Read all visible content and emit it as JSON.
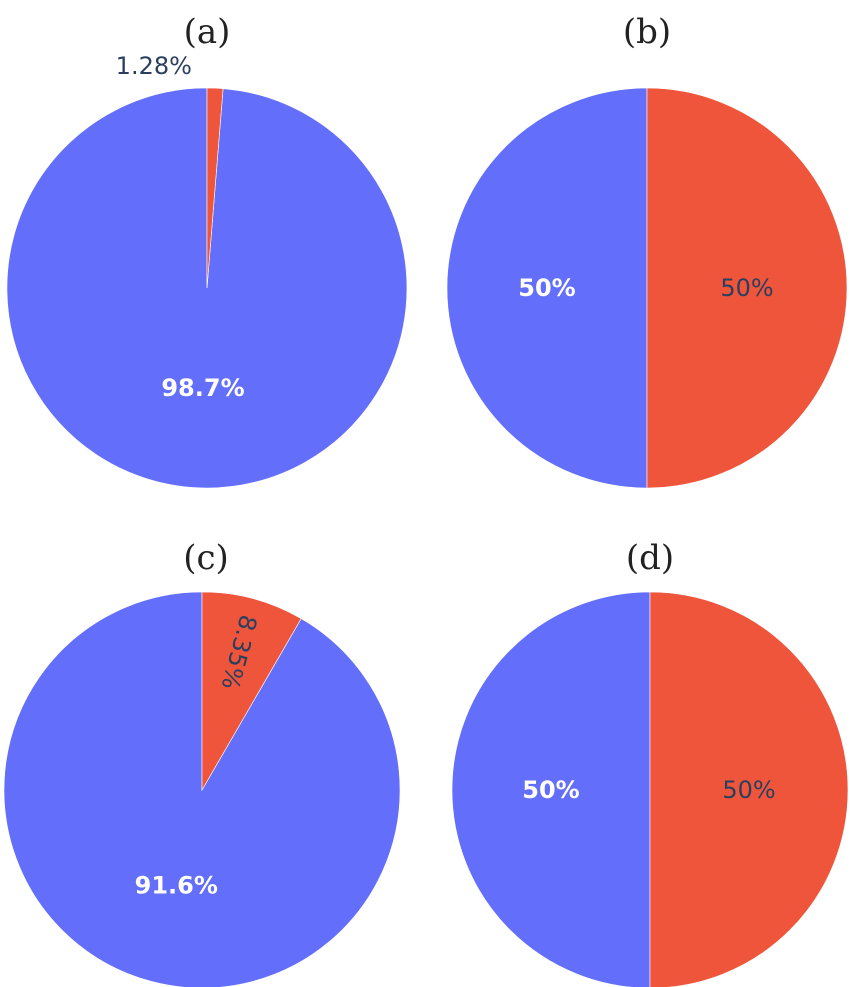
{
  "colors": {
    "blue": "#636efa",
    "red": "#ef553b",
    "text_dark": "#2a3f5f",
    "text_light": "#ffffff"
  },
  "chart_data": [
    {
      "type": "pie",
      "panel_label": "(a)",
      "slices": [
        {
          "value": 98.72,
          "label": "98.7%",
          "color": "#636efa",
          "label_position": "inside"
        },
        {
          "value": 1.28,
          "label": "1.28%",
          "color": "#ef553b",
          "label_position": "outside"
        }
      ]
    },
    {
      "type": "pie",
      "panel_label": "(b)",
      "slices": [
        {
          "value": 50,
          "label": "50%",
          "color": "#636efa",
          "label_position": "inside"
        },
        {
          "value": 50,
          "label": "50%",
          "color": "#ef553b",
          "label_position": "inside"
        }
      ]
    },
    {
      "type": "pie",
      "panel_label": "(c)",
      "slices": [
        {
          "value": 91.65,
          "label": "91.6%",
          "color": "#636efa",
          "label_position": "inside"
        },
        {
          "value": 8.35,
          "label": "8.35%",
          "color": "#ef553b",
          "label_position": "inside-rotated"
        }
      ]
    },
    {
      "type": "pie",
      "panel_label": "(d)",
      "slices": [
        {
          "value": 50,
          "label": "50%",
          "color": "#636efa",
          "label_position": "inside"
        },
        {
          "value": 50,
          "label": "50%",
          "color": "#ef553b",
          "label_position": "inside"
        }
      ]
    }
  ]
}
